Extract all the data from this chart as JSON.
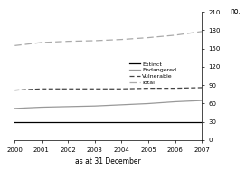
{
  "years": [
    2000,
    2001,
    2002,
    2003,
    2004,
    2005,
    2006,
    2007
  ],
  "extinct": [
    30,
    30,
    30,
    30,
    30,
    30,
    30,
    30
  ],
  "endangered": [
    52,
    54,
    55,
    56,
    58,
    60,
    63,
    65
  ],
  "vulnerable": [
    82,
    84,
    84,
    84,
    84,
    85,
    85,
    86
  ],
  "total": [
    155,
    160,
    162,
    163,
    165,
    168,
    172,
    178
  ],
  "ylabel": "no.",
  "xlabel": "as at 31 December",
  "ylim": [
    0,
    210
  ],
  "yticks": [
    0,
    30,
    60,
    90,
    120,
    150,
    180,
    210
  ],
  "xtick_labels": [
    "2000",
    "2001",
    "2002",
    "2003",
    "2004",
    "2005",
    "2006",
    "2007"
  ],
  "legend_labels": [
    "Extinct",
    "Endangered",
    "Vulnerable",
    "Total"
  ],
  "background_color": "#ffffff"
}
